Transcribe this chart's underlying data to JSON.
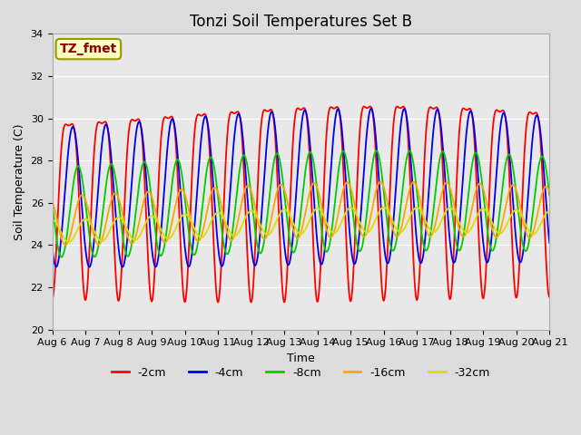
{
  "title": "Tonzi Soil Temperatures Set B",
  "xlabel": "Time",
  "ylabel": "Soil Temperature (C)",
  "ylim": [
    20,
    34
  ],
  "n_days": 15,
  "x_tick_labels": [
    "Aug 6",
    "Aug 7",
    "Aug 8",
    "Aug 9",
    "Aug 10",
    "Aug 11",
    "Aug 12",
    "Aug 13",
    "Aug 14",
    "Aug 15",
    "Aug 16",
    "Aug 17",
    "Aug 18",
    "Aug 19",
    "Aug 20",
    "Aug 21"
  ],
  "annotation_text": "TZ_fmet",
  "annotation_color": "#8B0000",
  "annotation_bg": "#FFFFC0",
  "annotation_border": "#999900",
  "series": [
    {
      "label": "-2cm",
      "color": "#FF0000",
      "amplitude": 5.5,
      "mean": 27.0,
      "phase_lag": 0.0,
      "asymmetry": 0.3
    },
    {
      "label": "-4cm",
      "color": "#0000EE",
      "amplitude": 3.4,
      "mean": 26.5,
      "phase_lag": 0.12,
      "asymmetry": 0.0
    },
    {
      "label": "-8cm",
      "color": "#00CC00",
      "amplitude": 2.2,
      "mean": 25.8,
      "phase_lag": 0.28,
      "asymmetry": 0.0
    },
    {
      "label": "-16cm",
      "color": "#FFA500",
      "amplitude": 1.2,
      "mean": 25.4,
      "phase_lag": 0.4,
      "asymmetry": 0.0
    },
    {
      "label": "-32cm",
      "color": "#DDDD00",
      "amplitude": 0.55,
      "mean": 24.9,
      "phase_lag": 0.5,
      "asymmetry": 0.0
    }
  ],
  "fig_bg": "#DCDCDC",
  "plot_bg": "#E8E8E8",
  "grid_color": "#FFFFFF",
  "linewidth": 1.3,
  "title_fontsize": 12,
  "label_fontsize": 9,
  "tick_fontsize": 8,
  "legend_fontsize": 9
}
